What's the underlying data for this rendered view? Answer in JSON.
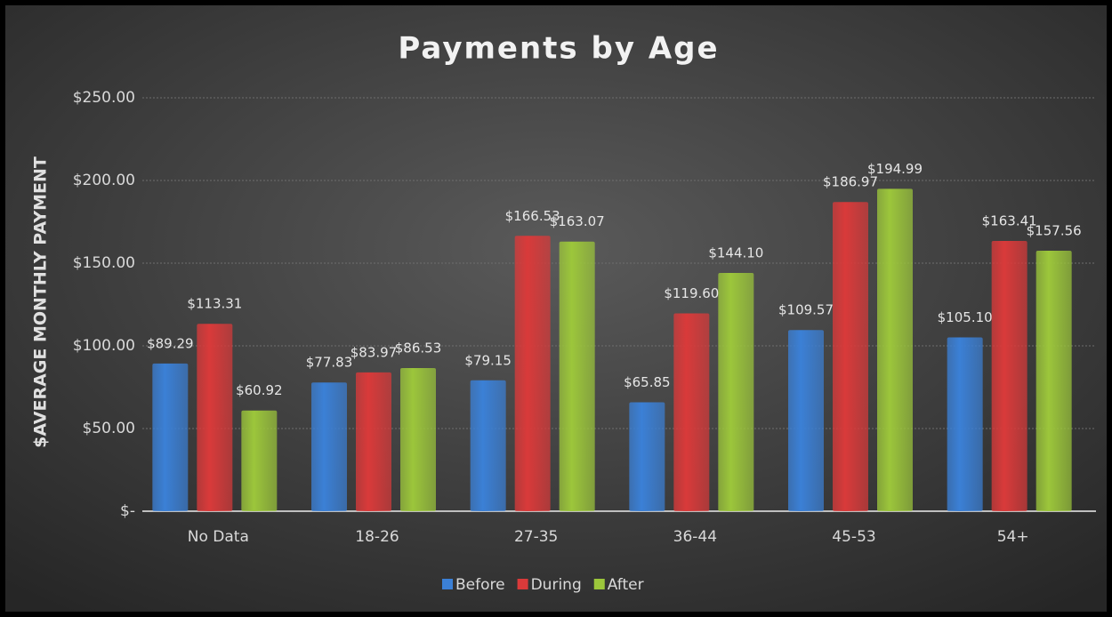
{
  "chart_data": {
    "type": "bar",
    "title": "Payments by Age",
    "y_label": "$AVERAGE MONTHLY PAYMENT",
    "categories": [
      "No Data",
      "18-26",
      "27-35",
      "36-44",
      "45-53",
      "54+"
    ],
    "series": [
      {
        "name": "Before",
        "color": "#3b80d6",
        "values": [
          89.29,
          77.83,
          79.15,
          65.85,
          109.57,
          105.1
        ],
        "value_labels": [
          "$89.29",
          "$77.83",
          "$79.15",
          "$65.85",
          "$109.57",
          "$105.10"
        ]
      },
      {
        "name": "During",
        "color": "#d93a3a",
        "values": [
          113.31,
          83.97,
          166.53,
          119.6,
          186.97,
          163.41
        ],
        "value_labels": [
          "$113.31",
          "$83.97",
          "$166.53",
          "$119.60",
          "$186.97",
          "$163.41"
        ]
      },
      {
        "name": "After",
        "color": "#9cc63b",
        "values": [
          60.92,
          86.53,
          163.07,
          144.1,
          194.99,
          157.56
        ],
        "value_labels": [
          "$60.92",
          "$86.53",
          "$163.07",
          "$144.10",
          "$194.99",
          "$157.56"
        ]
      }
    ],
    "ylim": [
      0,
      250
    ],
    "yticks": [
      {
        "value": 0,
        "label": "$-"
      },
      {
        "value": 50,
        "label": "$50.00"
      },
      {
        "value": 100,
        "label": "$100.00"
      },
      {
        "value": 150,
        "label": "$150.00"
      },
      {
        "value": 200,
        "label": "$200.00"
      },
      {
        "value": 250,
        "label": "$250.00"
      }
    ],
    "grid": true,
    "legend": "bottom"
  }
}
